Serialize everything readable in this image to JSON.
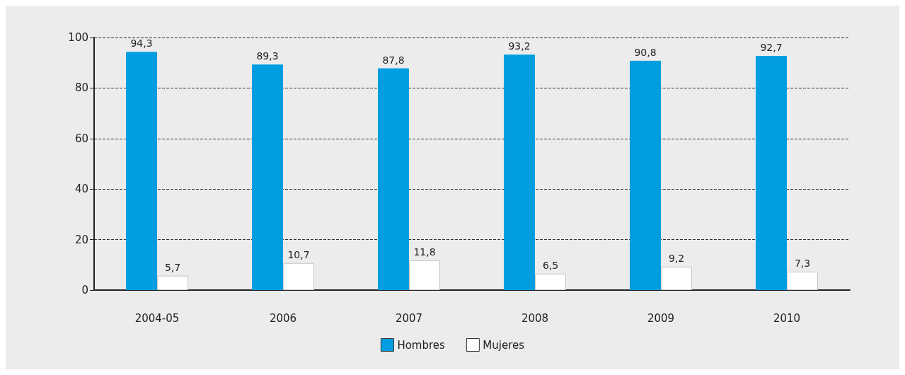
{
  "chart_data": {
    "type": "bar",
    "categories": [
      "2004-05",
      "2006",
      "2007",
      "2008",
      "2009",
      "2010"
    ],
    "series": [
      {
        "name": "Hombres",
        "color": "#009ee0",
        "values": [
          94.3,
          89.3,
          87.8,
          93.2,
          90.8,
          92.7
        ],
        "value_labels": [
          "94,3",
          "89,3",
          "87,8",
          "93,2",
          "90,8",
          "92,7"
        ]
      },
      {
        "name": "Mujeres",
        "color": "#ffffff",
        "values": [
          5.7,
          10.7,
          11.8,
          6.5,
          9.2,
          7.3
        ],
        "value_labels": [
          "5,7",
          "10,7",
          "11,8",
          "6,5",
          "9,2",
          "7,3"
        ]
      }
    ],
    "ylim": [
      0,
      100
    ],
    "yticks": [
      0,
      20,
      40,
      60,
      80,
      100
    ],
    "grid": "y",
    "legend": "bottom"
  }
}
